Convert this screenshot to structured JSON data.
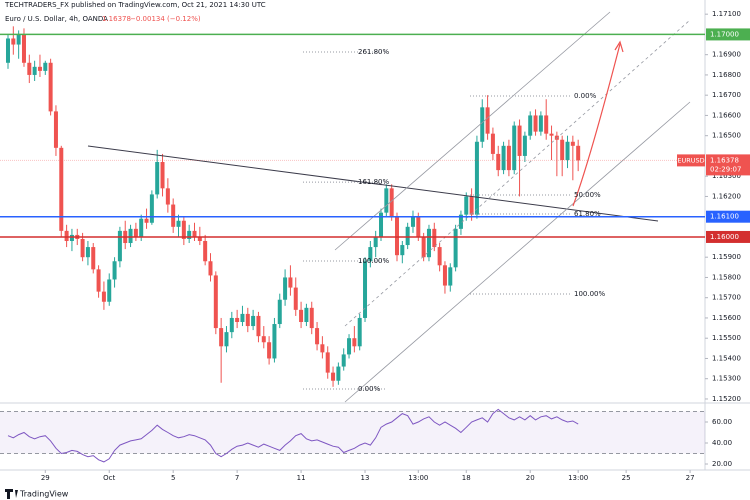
{
  "header": {
    "byline": "TECHTRADERS_FX published on TradingView.com, Oct 21, 2021 14:30 UTC",
    "symbol": "Euro / U.S. Dollar, 4h, OANDA",
    "change": "−0.00134 (−0.12%)"
  },
  "footer": {
    "brand": "TradingView"
  },
  "chart_data": [
    {
      "type": "candlestick",
      "series": [
        {
          "name": "EURUSD",
          "up_color": "#26a69a",
          "down_color": "#ef5350",
          "ohlc": [
            [
              1.1686,
              1.17,
              1.1683,
              1.1698
            ],
            [
              1.1698,
              1.1704,
              1.169,
              1.1695
            ],
            [
              1.1695,
              1.1702,
              1.1688,
              1.17
            ],
            [
              1.17,
              1.1703,
              1.1684,
              1.1686
            ],
            [
              1.1686,
              1.169,
              1.1676,
              1.168
            ],
            [
              1.168,
              1.1687,
              1.1677,
              1.1684
            ],
            [
              1.1684,
              1.169,
              1.1679,
              1.1682
            ],
            [
              1.1682,
              1.1687,
              1.168,
              1.1686
            ],
            [
              1.1686,
              1.1688,
              1.166,
              1.1662
            ],
            [
              1.1662,
              1.1665,
              1.164,
              1.1644
            ],
            [
              1.1644,
              1.1645,
              1.16,
              1.1603
            ],
            [
              1.1603,
              1.1606,
              1.1595,
              1.1598
            ],
            [
              1.1598,
              1.1604,
              1.1593,
              1.1601
            ],
            [
              1.1601,
              1.1604,
              1.1596,
              1.1599
            ],
            [
              1.1599,
              1.1602,
              1.1588,
              1.159
            ],
            [
              1.159,
              1.1598,
              1.1586,
              1.1595
            ],
            [
              1.1595,
              1.1597,
              1.1582,
              1.1584
            ],
            [
              1.1584,
              1.1586,
              1.157,
              1.1573
            ],
            [
              1.1573,
              1.1578,
              1.1564,
              1.1568
            ],
            [
              1.1568,
              1.1582,
              1.1566,
              1.1579
            ],
            [
              1.1579,
              1.159,
              1.1575,
              1.1588
            ],
            [
              1.1588,
              1.1605,
              1.1585,
              1.1603
            ],
            [
              1.1603,
              1.1608,
              1.1594,
              1.1597
            ],
            [
              1.1597,
              1.1606,
              1.1595,
              1.1604
            ],
            [
              1.1604,
              1.1607,
              1.1598,
              1.16
            ],
            [
              1.16,
              1.1611,
              1.1598,
              1.1609
            ],
            [
              1.1609,
              1.1614,
              1.1604,
              1.1607
            ],
            [
              1.1607,
              1.1623,
              1.1606,
              1.1621
            ],
            [
              1.1621,
              1.1643,
              1.1619,
              1.1637
            ],
            [
              1.1637,
              1.1641,
              1.162,
              1.1624
            ],
            [
              1.1624,
              1.1629,
              1.1612,
              1.1616
            ],
            [
              1.1616,
              1.1619,
              1.1602,
              1.1605
            ],
            [
              1.1605,
              1.1611,
              1.16,
              1.1608
            ],
            [
              1.1608,
              1.161,
              1.1596,
              1.1599
            ],
            [
              1.1599,
              1.1606,
              1.1597,
              1.1603
            ],
            [
              1.1603,
              1.1607,
              1.1598,
              1.16
            ],
            [
              1.16,
              1.1605,
              1.1596,
              1.1598
            ],
            [
              1.1598,
              1.1601,
              1.1586,
              1.1588
            ],
            [
              1.1588,
              1.1592,
              1.1578,
              1.1581
            ],
            [
              1.1581,
              1.1583,
              1.1552,
              1.1555
            ],
            [
              1.1555,
              1.156,
              1.1528,
              1.1546
            ],
            [
              1.1546,
              1.1556,
              1.1543,
              1.1553
            ],
            [
              1.1553,
              1.1563,
              1.155,
              1.156
            ],
            [
              1.156,
              1.1564,
              1.1555,
              1.1558
            ],
            [
              1.1558,
              1.1566,
              1.1556,
              1.1562
            ],
            [
              1.1562,
              1.1565,
              1.1553,
              1.1556
            ],
            [
              1.1556,
              1.1564,
              1.1554,
              1.1561
            ],
            [
              1.1561,
              1.1563,
              1.1548,
              1.1551
            ],
            [
              1.1551,
              1.1556,
              1.1545,
              1.1548
            ],
            [
              1.1548,
              1.1551,
              1.1537,
              1.154
            ],
            [
              1.154,
              1.156,
              1.1538,
              1.1557
            ],
            [
              1.1557,
              1.1572,
              1.1555,
              1.1569
            ],
            [
              1.1569,
              1.1584,
              1.1566,
              1.158
            ],
            [
              1.158,
              1.1586,
              1.1571,
              1.1575
            ],
            [
              1.1575,
              1.158,
              1.1561,
              1.1564
            ],
            [
              1.1564,
              1.1568,
              1.1555,
              1.1558
            ],
            [
              1.1558,
              1.1567,
              1.1556,
              1.1565
            ],
            [
              1.1565,
              1.1568,
              1.1552,
              1.1555
            ],
            [
              1.1555,
              1.1558,
              1.1544,
              1.1547
            ],
            [
              1.1547,
              1.1551,
              1.154,
              1.1543
            ],
            [
              1.1543,
              1.1546,
              1.153,
              1.1533
            ],
            [
              1.1533,
              1.1536,
              1.1526,
              1.1529
            ],
            [
              1.1529,
              1.1538,
              1.1527,
              1.1536
            ],
            [
              1.1536,
              1.1545,
              1.1534,
              1.1542
            ],
            [
              1.1542,
              1.1552,
              1.154,
              1.155
            ],
            [
              1.155,
              1.1556,
              1.1543,
              1.1546
            ],
            [
              1.1546,
              1.1562,
              1.1544,
              1.156
            ],
            [
              1.156,
              1.159,
              1.1558,
              1.1588
            ],
            [
              1.1588,
              1.1598,
              1.1585,
              1.1595
            ],
            [
              1.1595,
              1.1603,
              1.159,
              1.16
            ],
            [
              1.16,
              1.1614,
              1.1598,
              1.1612
            ],
            [
              1.1612,
              1.1626,
              1.161,
              1.1624
            ],
            [
              1.1624,
              1.1626,
              1.1608,
              1.161
            ],
            [
              1.161,
              1.1612,
              1.1588,
              1.1591
            ],
            [
              1.1591,
              1.1598,
              1.1587,
              1.1596
            ],
            [
              1.1596,
              1.1607,
              1.1594,
              1.1605
            ],
            [
              1.1605,
              1.1613,
              1.1602,
              1.161
            ],
            [
              1.161,
              1.1612,
              1.1598,
              1.16
            ],
            [
              1.16,
              1.1602,
              1.1588,
              1.159
            ],
            [
              1.159,
              1.1606,
              1.1588,
              1.1604
            ],
            [
              1.1604,
              1.1607,
              1.1593,
              1.1595
            ],
            [
              1.1595,
              1.1597,
              1.1583,
              1.1586
            ],
            [
              1.1586,
              1.1588,
              1.1572,
              1.1576
            ],
            [
              1.1576,
              1.1587,
              1.1573,
              1.1585
            ],
            [
              1.1585,
              1.1606,
              1.1583,
              1.1604
            ],
            [
              1.1604,
              1.1613,
              1.1601,
              1.1611
            ],
            [
              1.1611,
              1.1622,
              1.1608,
              1.162
            ],
            [
              1.162,
              1.1624,
              1.1608,
              1.1611
            ],
            [
              1.1611,
              1.165,
              1.1609,
              1.1647
            ],
            [
              1.1647,
              1.1668,
              1.1644,
              1.1664
            ],
            [
              1.1664,
              1.167,
              1.1648,
              1.1651
            ],
            [
              1.1651,
              1.1654,
              1.1638,
              1.1641
            ],
            [
              1.1641,
              1.1645,
              1.163,
              1.1633
            ],
            [
              1.1633,
              1.1647,
              1.1631,
              1.1645
            ],
            [
              1.1645,
              1.1648,
              1.163,
              1.1633
            ],
            [
              1.1633,
              1.1657,
              1.1631,
              1.1655
            ],
            [
              1.1655,
              1.1658,
              1.162,
              1.164
            ],
            [
              1.164,
              1.1652,
              1.1637,
              1.165
            ],
            [
              1.165,
              1.1662,
              1.1648,
              1.166
            ],
            [
              1.166,
              1.1663,
              1.165,
              1.1652
            ],
            [
              1.1652,
              1.1662,
              1.165,
              1.166
            ],
            [
              1.166,
              1.1668,
              1.1648,
              1.1651
            ],
            [
              1.1651,
              1.1655,
              1.1638,
              1.165
            ],
            [
              1.165,
              1.1652,
              1.163,
              1.1648
            ],
            [
              1.1648,
              1.165,
              1.163,
              1.1638
            ],
            [
              1.1638,
              1.165,
              1.1634,
              1.1647
            ],
            [
              1.1647,
              1.165,
              1.1628,
              1.1645
            ],
            [
              1.1645,
              1.1648,
              1.16325,
              1.16378
            ]
          ]
        }
      ],
      "last_price": 1.16378,
      "countdown": "02:29:07",
      "hlines": [
        {
          "value": 1.17,
          "label": "1.17000",
          "color": "#4caf50"
        },
        {
          "value": 1.161,
          "label": "1.16100",
          "color": "#2962ff"
        },
        {
          "value": 1.16,
          "label": "1.16000",
          "color": "#d32f2f"
        }
      ],
      "fib_left": [
        {
          "value": 1.16913,
          "label": "261.80%"
        },
        {
          "value": 1.16271,
          "label": "161.80%"
        },
        {
          "value": 1.15881,
          "label": "100.00%"
        },
        {
          "value": 1.15249,
          "label": "0.00%"
        }
      ],
      "fib_right": [
        {
          "value": 1.16696,
          "label": "0.00%"
        },
        {
          "value": 1.16207,
          "label": "50.00%"
        },
        {
          "value": 1.16113,
          "label": "61.80%"
        },
        {
          "value": 1.15718,
          "label": "100.00%"
        }
      ],
      "xlim": [
        -1.5,
        130.8
      ],
      "xticks": [
        {
          "value": 7,
          "label": "29"
        },
        {
          "value": 19,
          "label": "Oct"
        },
        {
          "value": 31,
          "label": "5"
        },
        {
          "value": 43,
          "label": "7"
        },
        {
          "value": 55,
          "label": "11"
        },
        {
          "value": 67,
          "label": "13"
        },
        {
          "value": 77,
          "label": "13:00"
        },
        {
          "value": 86,
          "label": "18"
        },
        {
          "value": 98,
          "label": "20"
        },
        {
          "value": 107,
          "label": "13:00"
        },
        {
          "value": 116,
          "label": "25"
        },
        {
          "value": 128,
          "label": "27"
        }
      ],
      "ylim": [
        1.15185,
        1.1717
      ],
      "yticks": [
        {
          "value": 1.152,
          "label": "1.15200"
        },
        {
          "value": 1.153,
          "label": "1.15300"
        },
        {
          "value": 1.154,
          "label": "1.15400"
        },
        {
          "value": 1.155,
          "label": "1.15500"
        },
        {
          "value": 1.156,
          "label": "1.15600"
        },
        {
          "value": 1.157,
          "label": "1.15700"
        },
        {
          "value": 1.158,
          "label": "1.15800"
        },
        {
          "value": 1.159,
          "label": "1.15900"
        },
        {
          "value": 1.162,
          "label": "1.16200"
        },
        {
          "value": 1.163,
          "label": "1.16300"
        },
        {
          "value": 1.165,
          "label": "1.16500"
        },
        {
          "value": 1.166,
          "label": "1.16600"
        },
        {
          "value": 1.167,
          "label": "1.16700"
        },
        {
          "value": 1.168,
          "label": "1.16800"
        },
        {
          "value": 1.169,
          "label": "1.16900"
        },
        {
          "value": 1.171,
          "label": "1.17100"
        }
      ]
    },
    {
      "type": "line",
      "series": [
        {
          "color": "#7e57c2",
          "values": [
            47,
            45,
            48,
            50,
            46,
            44,
            46,
            47,
            42,
            35,
            30,
            31,
            33,
            32,
            29,
            27,
            28,
            24,
            22,
            25,
            33,
            38,
            40,
            42,
            43,
            44,
            48,
            52,
            57,
            53,
            50,
            47,
            45,
            46,
            48,
            47,
            45,
            43,
            38,
            30,
            27,
            30,
            34,
            37,
            38,
            40,
            38,
            36,
            39,
            37,
            35,
            33,
            38,
            42,
            47,
            49,
            44,
            42,
            43,
            41,
            39,
            37,
            36,
            31,
            33,
            35,
            38,
            40,
            38,
            45,
            55,
            58,
            60,
            64,
            68,
            66,
            58,
            60,
            63,
            65,
            60,
            57,
            60,
            57,
            54,
            50,
            55,
            60,
            62,
            64,
            60,
            68,
            72,
            68,
            64,
            62,
            65,
            62,
            66,
            62,
            65,
            66,
            63,
            65,
            62,
            60,
            61,
            58
          ]
        }
      ],
      "band": [
        30,
        70
      ],
      "ylim": [
        14.3,
        76.2
      ],
      "yticks": [
        {
          "value": 60,
          "label": "60.00"
        },
        {
          "value": 40,
          "label": "40.00"
        },
        {
          "value": 20,
          "label": "20.00"
        }
      ]
    }
  ]
}
